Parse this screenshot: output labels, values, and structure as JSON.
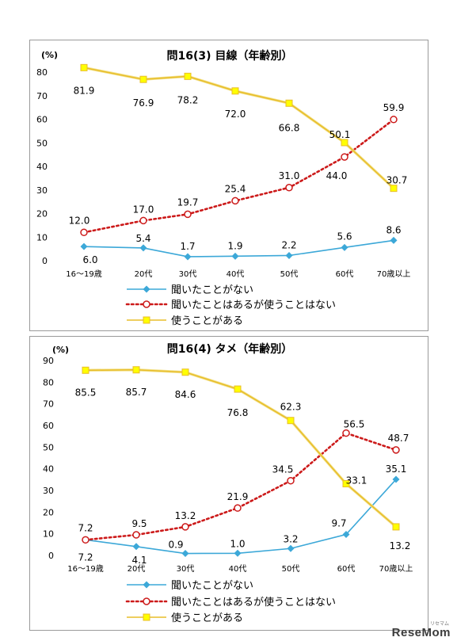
{
  "colors": {
    "heard_never": "#3ca8d8",
    "heard_not_used": "#cc1a1a",
    "used": "#e8bd2a",
    "used_marker": "#ffff00"
  },
  "chart_data": [
    {
      "type": "line",
      "title": "問16(3) 目線（年齢別）",
      "ylabel": "(%)",
      "ylim": [
        0,
        80
      ],
      "yticks": [
        "0",
        "10",
        "20",
        "30",
        "40",
        "50",
        "60",
        "70",
        "80"
      ],
      "categories": [
        "16～19歳",
        "20代",
        "30代",
        "40代",
        "50代",
        "60代",
        "70歳以上"
      ],
      "series": [
        {
          "name": "聞いたことがない",
          "values": [
            6.0,
            5.4,
            1.7,
            1.9,
            2.2,
            5.6,
            8.6
          ],
          "labels": [
            "6.0",
            "5.4",
            "1.7",
            "1.9",
            "2.2",
            "5.6",
            "8.6"
          ]
        },
        {
          "name": "聞いたことはあるが使うことはない",
          "values": [
            12.0,
            17.0,
            19.7,
            25.4,
            31.0,
            44.0,
            59.9
          ],
          "labels": [
            "12.0",
            "17.0",
            "19.7",
            "25.4",
            "31.0",
            "44.0",
            "59.9"
          ]
        },
        {
          "name": "使うことがある",
          "values": [
            81.9,
            76.9,
            78.2,
            72.0,
            66.8,
            50.1,
            30.7
          ],
          "labels": [
            "81.9",
            "76.9",
            "78.2",
            "72.0",
            "66.8",
            "50.1",
            "30.7"
          ]
        }
      ],
      "legend": "bottom-left"
    },
    {
      "type": "line",
      "title": "問16(4) タメ（年齢別）",
      "ylabel": "(%)",
      "ylim": [
        0,
        90
      ],
      "yticks": [
        "0",
        "10",
        "20",
        "30",
        "40",
        "50",
        "60",
        "70",
        "80",
        "90"
      ],
      "categories": [
        "16～19歳",
        "20代",
        "30代",
        "40代",
        "50代",
        "60代",
        "70歳以上"
      ],
      "series": [
        {
          "name": "聞いたことがない",
          "values": [
            7.2,
            4.1,
            0.9,
            1.0,
            3.2,
            9.7,
            35.1
          ],
          "labels": [
            "7.2",
            "4.1",
            "0.9",
            "1.0",
            "3.2",
            "9.7",
            "35.1"
          ]
        },
        {
          "name": "聞いたことはあるが使うことはない",
          "values": [
            7.2,
            9.5,
            13.2,
            21.9,
            34.5,
            56.5,
            48.7
          ],
          "labels": [
            "7.2",
            "9.5",
            "13.2",
            "21.9",
            "34.5",
            "56.5",
            "48.7"
          ]
        },
        {
          "name": "使うことがある",
          "values": [
            85.5,
            85.7,
            84.6,
            76.8,
            62.3,
            33.1,
            13.2
          ],
          "labels": [
            "85.5",
            "85.7",
            "84.6",
            "76.8",
            "62.3",
            "33.1",
            "13.2"
          ]
        }
      ],
      "legend": "bottom-left"
    }
  ],
  "watermark": {
    "text": "ReseMom",
    "small": "リセマム"
  }
}
